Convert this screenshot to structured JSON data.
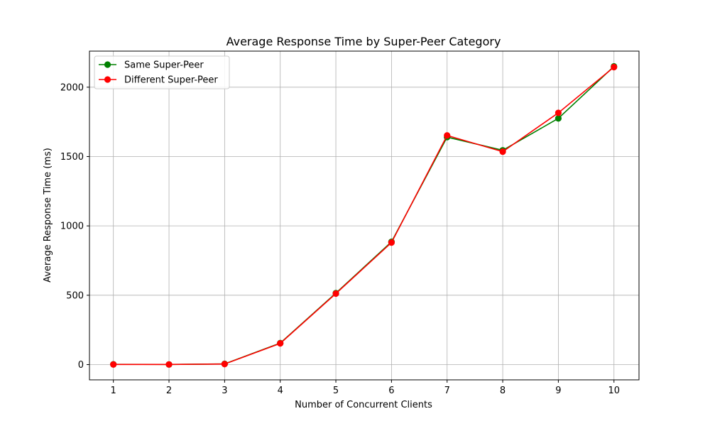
{
  "chart_data": {
    "type": "line",
    "title": "Average Response Time by Super-Peer Category",
    "xlabel": "Number of Concurrent Clients",
    "ylabel": "Average Response Time (ms)",
    "x": [
      1,
      2,
      3,
      4,
      5,
      6,
      7,
      8,
      9,
      10
    ],
    "xlim": [
      0.57,
      10.45
    ],
    "ylim": [
      -110,
      2260
    ],
    "xticks": [
      1,
      2,
      3,
      4,
      5,
      6,
      7,
      8,
      9,
      10
    ],
    "yticks": [
      0,
      500,
      1000,
      1500,
      2000
    ],
    "grid": true,
    "legend": {
      "position": "top-left"
    },
    "series": [
      {
        "name": "Same Super-Peer",
        "color": "#008000",
        "marker": "circle",
        "values": [
          2,
          1,
          5,
          155,
          515,
          885,
          1640,
          1545,
          1775,
          2150
        ]
      },
      {
        "name": "Different Super-Peer",
        "color": "#ff0000",
        "marker": "circle",
        "values": [
          1,
          1,
          4,
          153,
          512,
          880,
          1652,
          1535,
          1815,
          2145
        ]
      }
    ]
  }
}
